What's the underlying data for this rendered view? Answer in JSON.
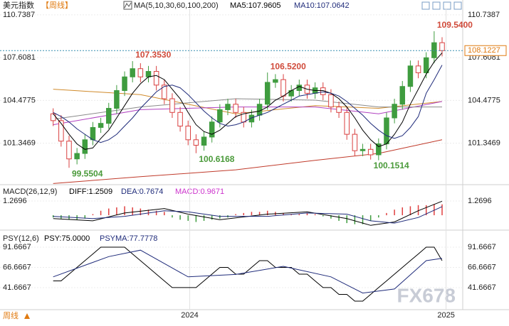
{
  "chart_data": [
    {
      "type": "candlestick",
      "title": "美元指数",
      "period": "【周线】",
      "ma_legend": "MA(5,10,30,60,100,200)",
      "ylim": [
        98.42,
        111.2
      ],
      "yticks": [
        110.7387,
        107.6081,
        104.4775,
        101.3469
      ],
      "grid": true,
      "xlim": [
        -6.7,
        51.6
      ],
      "xticks": [
        {
          "value": 17.2,
          "label": "2024"
        },
        {
          "value": 49.5,
          "label": "2025"
        }
      ],
      "up_color": "#3f9c3f",
      "down_color": "#d94040",
      "candles": {
        "open": [
          103.5,
          103.0,
          101.5,
          100.2,
          100.6,
          101.6,
          102.5,
          102.8,
          103.9,
          105.2,
          106.2,
          106.8,
          106.2,
          106.6,
          105.6,
          104.6,
          103.6,
          102.6,
          101.6,
          101.2,
          101.8,
          102.9,
          103.8,
          104.2,
          103.6,
          102.9,
          103.4,
          104.2,
          105.8,
          106.0,
          104.8,
          105.2,
          105.6,
          105.0,
          105.4,
          104.9,
          104.0,
          103.6,
          102.0,
          100.8,
          100.9,
          100.5,
          101.3,
          103.2,
          104.2,
          105.5,
          107.0,
          106.5,
          107.6,
          108.7
        ],
        "high": [
          103.9,
          103.4,
          101.9,
          101.0,
          102.0,
          102.9,
          103.2,
          104.3,
          105.6,
          106.6,
          107.353,
          107.2,
          107.0,
          107.0,
          106.0,
          105.0,
          104.0,
          103.0,
          102.0,
          102.2,
          103.3,
          104.2,
          104.6,
          104.6,
          104.0,
          103.8,
          104.6,
          106.52,
          106.4,
          106.4,
          105.6,
          106.0,
          106.0,
          105.8,
          105.8,
          105.3,
          104.4,
          104.0,
          102.4,
          101.3,
          101.3,
          101.7,
          103.6,
          104.6,
          105.9,
          107.4,
          107.4,
          108.0,
          109.54,
          109.1
        ],
        "low": [
          102.6,
          101.1,
          99.5504,
          99.8,
          100.2,
          101.2,
          102.1,
          102.4,
          103.5,
          104.8,
          105.8,
          105.8,
          105.8,
          105.2,
          104.2,
          103.2,
          102.2,
          101.2,
          100.6168,
          100.8,
          101.4,
          102.5,
          103.4,
          103.2,
          102.5,
          102.5,
          103.0,
          103.8,
          105.4,
          104.4,
          104.4,
          104.8,
          104.6,
          104.6,
          104.5,
          103.6,
          103.2,
          101.6,
          100.4,
          100.4,
          100.1514,
          100.1,
          100.9,
          102.8,
          103.8,
          105.1,
          106.1,
          106.1,
          107.2,
          107.7
        ],
        "close": [
          103.0,
          101.5,
          100.2,
          100.6,
          101.6,
          102.5,
          102.8,
          103.9,
          105.2,
          106.2,
          106.8,
          106.2,
          106.6,
          105.6,
          104.6,
          103.6,
          102.6,
          101.6,
          101.2,
          101.8,
          102.9,
          103.8,
          104.2,
          103.6,
          102.9,
          103.4,
          104.2,
          105.8,
          106.0,
          104.8,
          105.2,
          105.6,
          105.0,
          105.4,
          104.9,
          104.0,
          103.6,
          102.0,
          100.8,
          100.9,
          100.5,
          101.3,
          103.2,
          104.2,
          105.5,
          107.0,
          106.5,
          107.6,
          108.7,
          108.12
        ]
      },
      "series": [
        {
          "name": "MA5:107.9605",
          "color": "#000000",
          "values": [
            103.5,
            102.8,
            102.0,
            101.3,
            100.9,
            101.0,
            101.7,
            102.3,
            103.2,
            104.1,
            105.0,
            105.7,
            106.2,
            106.3,
            106.0,
            105.3,
            104.6,
            103.6,
            102.7,
            102.2,
            102.0,
            102.3,
            102.8,
            103.3,
            103.5,
            103.6,
            103.7,
            104.0,
            104.5,
            104.8,
            105.2,
            105.5,
            105.3,
            105.2,
            105.2,
            105.0,
            104.6,
            104.0,
            103.2,
            102.3,
            101.6,
            101.1,
            101.3,
            102.0,
            102.9,
            104.2,
            105.3,
            106.4,
            107.3,
            107.9605
          ]
        },
        {
          "name": "MA10:107.0642",
          "color": "#1f2b7a",
          "values": [
            103.6,
            103.3,
            102.9,
            102.4,
            102.0,
            101.6,
            101.4,
            101.6,
            102.0,
            102.6,
            103.2,
            103.9,
            104.5,
            105.1,
            105.5,
            105.6,
            105.4,
            104.9,
            104.3,
            103.7,
            103.2,
            102.8,
            102.6,
            102.7,
            102.9,
            103.2,
            103.4,
            103.6,
            103.9,
            104.2,
            104.5,
            104.8,
            104.9,
            105.0,
            105.1,
            105.0,
            104.8,
            104.4,
            103.9,
            103.4,
            102.8,
            102.3,
            101.9,
            101.7,
            101.9,
            102.5,
            103.3,
            105.0,
            106.0,
            107.0642
          ]
        },
        {
          "color": "#d08a2a",
          "x": [
            0,
            11,
            23,
            33,
            41,
            49
          ],
          "values": [
            105.3,
            104.9,
            103.5,
            104.1,
            103.9,
            104.4
          ]
        },
        {
          "color": "#b040c0",
          "x": [
            0,
            11,
            23,
            33,
            41,
            49
          ],
          "values": [
            102.7,
            103.8,
            104.0,
            104.0,
            103.5,
            104.4
          ]
        },
        {
          "color": "#8a8a8a",
          "x": [
            0,
            11,
            23,
            33,
            41,
            49
          ],
          "values": [
            103.1,
            104.0,
            104.6,
            104.5,
            104.0,
            104.0
          ]
        },
        {
          "color": "#c03a2a",
          "x": [
            0,
            11,
            23,
            33,
            41,
            49
          ],
          "values": [
            98.4,
            98.9,
            99.4,
            100.1,
            100.6,
            101.6
          ]
        }
      ],
      "annotations": [
        {
          "text": "107.3530",
          "x": 10,
          "y": 107.353
        },
        {
          "text": "99.5504",
          "x": 2,
          "y": 99.5504
        },
        {
          "text": "100.6168",
          "x": 18,
          "y": 100.6168
        },
        {
          "text": "106.5200",
          "x": 27,
          "y": 106.52
        },
        {
          "text": "100.1514",
          "x": 40,
          "y": 100.1514
        },
        {
          "text": "109.5400",
          "x": 48,
          "y": 109.54
        }
      ],
      "last": {
        "value": 108.1227,
        "label": "108.1227"
      }
    },
    {
      "type": "macd",
      "title": "MACD(26,12,9)",
      "ylim": [
        -1.2,
        2.6
      ],
      "yticks": [
        1.2696
      ],
      "up_color": "#e04040",
      "down_color": "#3f9c3f",
      "series": [
        {
          "name": "DIFF:1.2509",
          "color": "#000000",
          "x": [
            0,
            5,
            9,
            14,
            17,
            21,
            27,
            32,
            37,
            40,
            43,
            46,
            49
          ],
          "values": [
            -0.3,
            -0.5,
            0.2,
            0.6,
            0.1,
            -0.4,
            0.1,
            0.3,
            -0.3,
            -0.9,
            -0.6,
            0.4,
            1.25
          ]
        },
        {
          "name": "DEA:0.7674",
          "color": "#1f2b7a",
          "x": [
            0,
            5,
            9,
            14,
            17,
            21,
            27,
            32,
            37,
            40,
            43,
            46,
            49
          ],
          "values": [
            -0.1,
            -0.3,
            -0.1,
            0.4,
            0.3,
            -0.1,
            -0.1,
            0.2,
            0.1,
            -0.5,
            -0.7,
            -0.2,
            0.77
          ]
        }
      ],
      "histogram": {
        "name": "MACD:0.9671",
        "color": "#cc33cc",
        "values": [
          -0.2,
          -0.3,
          -0.4,
          -0.4,
          -0.3,
          0.1,
          0.4,
          0.6,
          0.7,
          0.8,
          0.7,
          0.6,
          0.5,
          0.4,
          0.3,
          -0.2,
          -0.4,
          -0.5,
          -0.6,
          -0.5,
          -0.4,
          -0.3,
          -0.2,
          0.1,
          0.2,
          0.3,
          0.3,
          0.4,
          0.3,
          0.2,
          0.1,
          0.1,
          0.2,
          0.1,
          -0.1,
          -0.3,
          -0.5,
          -0.7,
          -0.8,
          -0.8,
          -0.5,
          -0.2,
          0.2,
          0.5,
          0.7,
          0.8,
          0.9,
          0.9,
          1.0,
          0.97
        ]
      }
    },
    {
      "type": "line",
      "title": "PSY(12,6)",
      "ylim": [
        16.2,
        111
      ],
      "yticks": [
        91.6667,
        66.6667,
        41.6667
      ],
      "series": [
        {
          "name": "PSY:75.0000",
          "color": "#000000",
          "values": [
            50,
            50,
            58.3,
            66.7,
            75,
            83.3,
            91.7,
            91.7,
            91.7,
            91.7,
            83.3,
            75,
            66.7,
            58.3,
            50,
            41.7,
            41.7,
            41.7,
            41.7,
            50,
            58.3,
            66.7,
            66.7,
            58.3,
            58.3,
            66.7,
            75,
            75,
            66.7,
            66.7,
            66.7,
            58.3,
            58.3,
            50,
            41.7,
            41.7,
            33.3,
            33.3,
            25,
            25,
            33.3,
            41.7,
            50,
            58.3,
            66.7,
            75,
            83.3,
            91.7,
            91.7,
            75
          ]
        },
        {
          "name": "PSYMA:77.7778",
          "color": "#1f2b7a",
          "x": [
            0,
            7,
            11,
            17,
            23,
            29,
            35,
            39,
            43,
            47,
            49
          ],
          "values": [
            55,
            80,
            88,
            55,
            58,
            68,
            55,
            35,
            40,
            75,
            77.7778
          ]
        }
      ]
    }
  ],
  "footer": {
    "period": "周线"
  },
  "watermark": "FX678"
}
